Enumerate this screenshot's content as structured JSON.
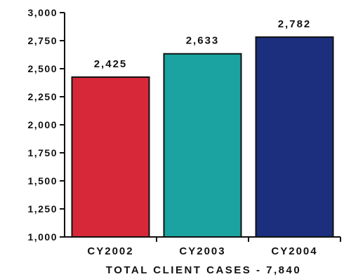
{
  "chart_data": {
    "type": "bar",
    "title": "TOTAL CLIENT CASES - 7,840",
    "categories": [
      "CY2002",
      "CY2003",
      "CY2004"
    ],
    "values": [
      2425,
      2633,
      2782
    ],
    "value_labels": [
      "2,425",
      "2,633",
      "2,782"
    ],
    "ylim": [
      1000,
      3000
    ],
    "yticks": [
      1000,
      1250,
      1500,
      1750,
      2000,
      2250,
      2500,
      2750,
      3000
    ],
    "ytick_labels": [
      "1,000",
      "1,250",
      "1,500",
      "1,750",
      "2,000",
      "2,250",
      "2,500",
      "2,750",
      "3,000"
    ],
    "colors": [
      "#d62838",
      "#1aa3a0",
      "#1c2f7e"
    ],
    "grid": false,
    "legend": "none"
  }
}
